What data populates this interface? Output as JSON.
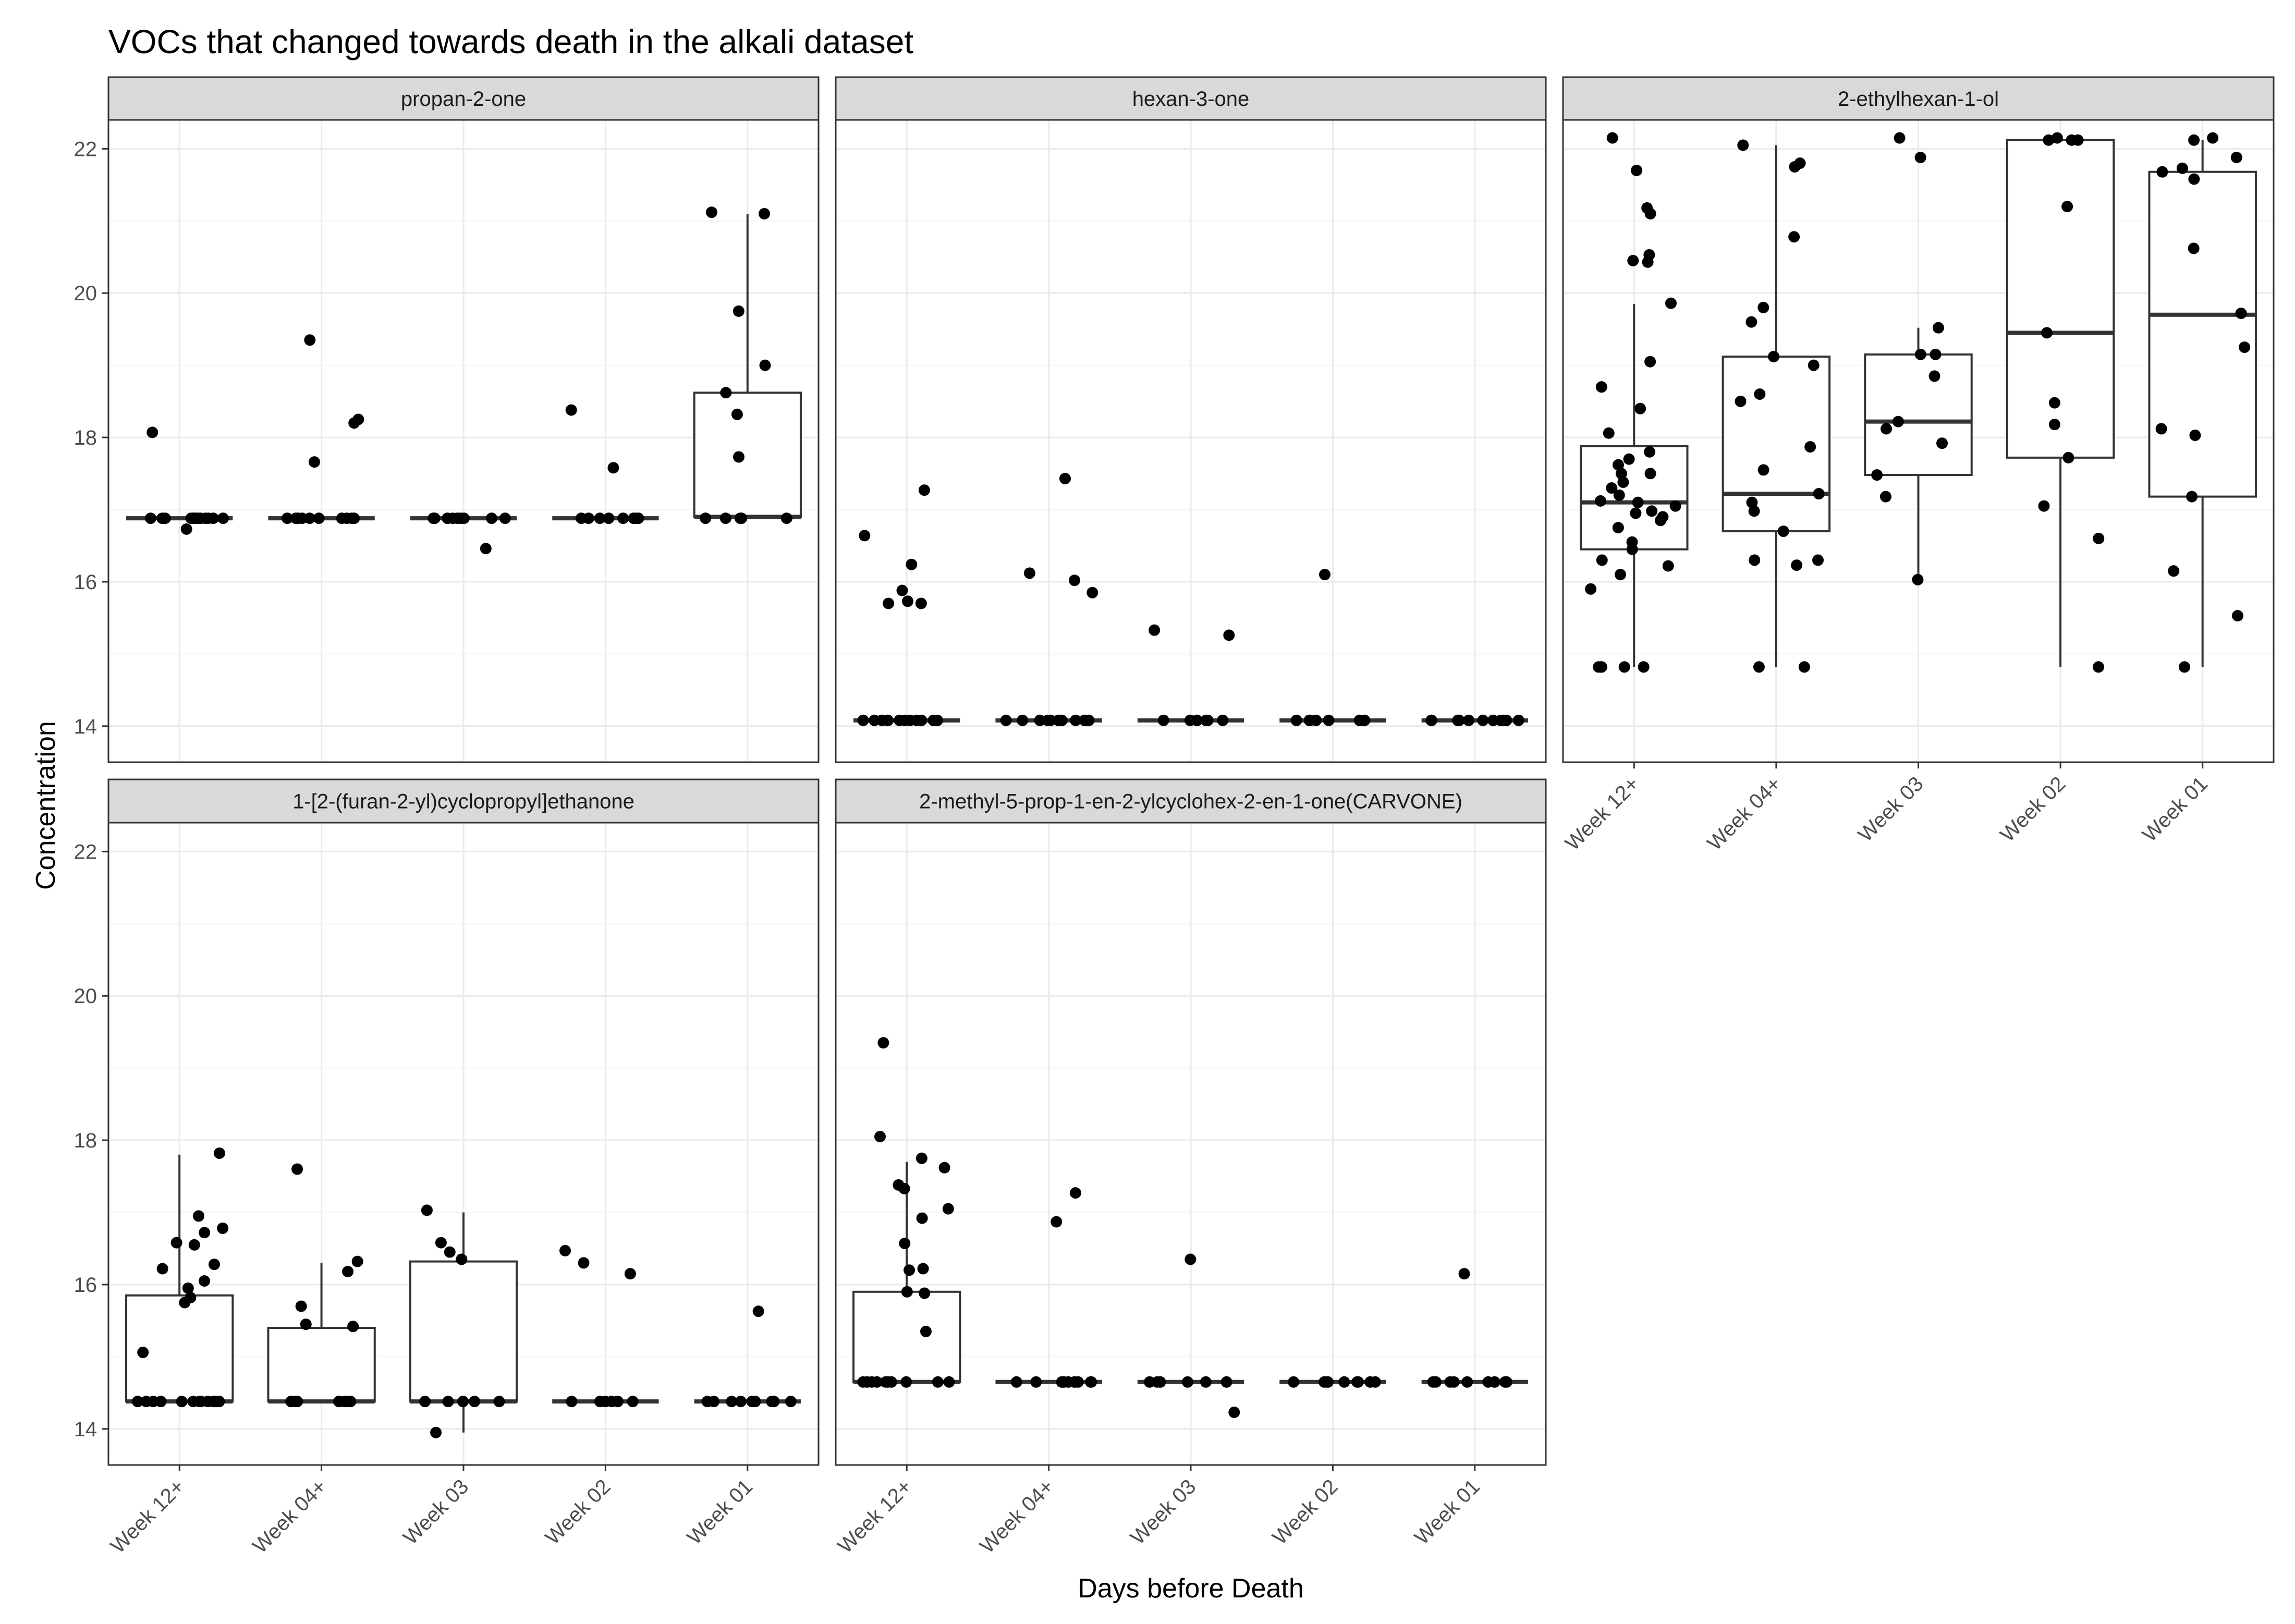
{
  "chart_data": {
    "type": "box",
    "title": "VOCs that changed towards death in the alkali dataset",
    "xlabel": "Days before Death",
    "ylabel": "Concentration",
    "categories": [
      "Week 12+",
      "Week 04+",
      "Week 03",
      "Week 02",
      "Week 01"
    ],
    "ylim": [
      13.5,
      22.4
    ],
    "yticks": [
      14,
      16,
      18,
      20,
      22
    ],
    "facets": [
      {
        "label": "propan-2-one",
        "groups": [
          {
            "category": "Week 12+",
            "q1": 16.88,
            "median": 16.88,
            "q3": 16.88,
            "whisker_low": 16.88,
            "whisker_high": 16.88,
            "points": [
              16.88,
              16.88,
              16.88,
              16.88,
              16.88,
              16.88,
              16.88,
              16.88,
              16.88,
              16.88,
              16.88,
              16.88,
              16.88,
              18.07,
              16.73
            ]
          },
          {
            "category": "Week 04+",
            "q1": 16.88,
            "median": 16.88,
            "q3": 16.88,
            "whisker_low": 16.88,
            "whisker_high": 16.88,
            "points": [
              16.88,
              16.88,
              16.88,
              16.88,
              16.88,
              16.88,
              16.88,
              16.88,
              16.88,
              16.88,
              19.35,
              18.25,
              18.2,
              17.66
            ]
          },
          {
            "category": "Week 03",
            "q1": 16.88,
            "median": 16.88,
            "q3": 16.88,
            "whisker_low": 16.88,
            "whisker_high": 16.88,
            "points": [
              16.88,
              16.88,
              16.88,
              16.88,
              16.88,
              16.88,
              16.88,
              16.88,
              16.88,
              16.46
            ]
          },
          {
            "category": "Week 02",
            "q1": 16.88,
            "median": 16.88,
            "q3": 16.88,
            "whisker_low": 16.88,
            "whisker_high": 16.88,
            "points": [
              16.88,
              16.88,
              16.88,
              16.88,
              16.88,
              16.88,
              16.88,
              16.88,
              18.38,
              17.58
            ]
          },
          {
            "category": "Week 01",
            "q1": 16.9,
            "median": 16.9,
            "q3": 18.62,
            "whisker_low": 16.88,
            "whisker_high": 21.1,
            "points": [
              21.12,
              21.1,
              19.75,
              19.0,
              18.62,
              18.32,
              17.73,
              16.88,
              16.88,
              16.88,
              16.88,
              16.88
            ]
          }
        ]
      },
      {
        "label": "hexan-3-one",
        "groups": [
          {
            "category": "Week 12+",
            "q1": 14.08,
            "median": 14.08,
            "q3": 14.08,
            "whisker_low": 14.08,
            "whisker_high": 14.08,
            "points": [
              14.08,
              14.08,
              14.08,
              14.08,
              14.08,
              14.08,
              14.08,
              14.08,
              14.08,
              14.08,
              14.08,
              14.08,
              17.27,
              16.64,
              16.24,
              15.88,
              15.73,
              15.7,
              15.7
            ]
          },
          {
            "category": "Week 04+",
            "q1": 14.08,
            "median": 14.08,
            "q3": 14.08,
            "whisker_low": 14.08,
            "whisker_high": 14.08,
            "points": [
              14.08,
              14.08,
              14.08,
              14.08,
              14.08,
              14.08,
              14.08,
              14.08,
              14.08,
              14.08,
              14.08,
              17.43,
              16.12,
              16.02,
              15.85
            ]
          },
          {
            "category": "Week 03",
            "q1": 14.08,
            "median": 14.08,
            "q3": 14.08,
            "whisker_low": 14.08,
            "whisker_high": 14.08,
            "points": [
              14.08,
              14.08,
              14.08,
              14.08,
              14.08,
              14.08,
              14.08,
              15.33,
              15.26
            ]
          },
          {
            "category": "Week 02",
            "q1": 14.08,
            "median": 14.08,
            "q3": 14.08,
            "whisker_low": 14.08,
            "whisker_high": 14.08,
            "points": [
              14.08,
              14.08,
              14.08,
              14.08,
              14.08,
              14.08,
              14.08,
              14.08,
              16.1
            ]
          },
          {
            "category": "Week 01",
            "q1": 14.08,
            "median": 14.08,
            "q3": 14.08,
            "whisker_low": 14.08,
            "whisker_high": 14.08,
            "points": [
              14.08,
              14.08,
              14.08,
              14.08,
              14.08,
              14.08,
              14.08,
              14.08,
              14.08,
              14.08,
              14.08
            ]
          }
        ]
      },
      {
        "label": "2-ethylhexan-1-ol",
        "groups": [
          {
            "category": "Week 12+",
            "q1": 16.45,
            "median": 17.1,
            "q3": 17.88,
            "whisker_low": 14.82,
            "whisker_high": 19.85,
            "points": [
              22.15,
              21.7,
              21.18,
              21.1,
              20.53,
              20.45,
              20.43,
              19.86,
              19.05,
              18.7,
              18.4,
              18.06,
              17.8,
              17.7,
              17.62,
              17.5,
              17.5,
              17.38,
              17.3,
              17.2,
              17.12,
              17.1,
              17.05,
              16.98,
              16.95,
              16.9,
              16.85,
              16.75,
              16.55,
              16.45,
              16.3,
              16.22,
              16.1,
              15.9,
              14.82,
              14.82,
              14.82,
              14.82,
              14.82
            ]
          },
          {
            "category": "Week 04+",
            "q1": 16.7,
            "median": 17.22,
            "q3": 19.12,
            "whisker_low": 14.82,
            "whisker_high": 22.05,
            "points": [
              22.05,
              21.8,
              21.75,
              20.78,
              19.8,
              19.6,
              19.12,
              19.0,
              18.6,
              18.5,
              17.87,
              17.55,
              17.22,
              17.1,
              16.98,
              16.7,
              16.3,
              16.3,
              16.23,
              14.82,
              14.82
            ]
          },
          {
            "category": "Week 03",
            "q1": 17.48,
            "median": 18.22,
            "q3": 19.15,
            "whisker_low": 16.03,
            "whisker_high": 19.52,
            "points": [
              22.15,
              21.88,
              19.52,
              19.15,
              19.15,
              18.85,
              18.22,
              18.12,
              17.92,
              17.48,
              17.18,
              16.03
            ]
          },
          {
            "category": "Week 02",
            "q1": 17.72,
            "median": 19.45,
            "q3": 22.12,
            "whisker_low": 14.82,
            "whisker_high": 22.12,
            "points": [
              22.15,
              22.12,
              22.12,
              22.12,
              21.2,
              19.45,
              18.48,
              18.18,
              17.72,
              17.05,
              16.6,
              14.82
            ]
          },
          {
            "category": "Week 01",
            "q1": 17.18,
            "median": 19.7,
            "q3": 21.68,
            "whisker_low": 14.82,
            "whisker_high": 22.12,
            "points": [
              22.15,
              22.12,
              21.88,
              21.73,
              21.68,
              21.58,
              20.62,
              19.72,
              19.25,
              18.12,
              18.03,
              17.18,
              16.15,
              15.53,
              14.82
            ]
          }
        ]
      },
      {
        "label": "1-[2-(furan-2-yl)cyclopropyl]ethanone",
        "groups": [
          {
            "category": "Week 12+",
            "q1": 14.38,
            "median": 14.38,
            "q3": 15.85,
            "whisker_low": 14.38,
            "whisker_high": 17.8,
            "points": [
              17.82,
              16.95,
              16.78,
              16.72,
              16.58,
              16.55,
              16.28,
              16.22,
              16.05,
              15.95,
              15.82,
              15.75,
              15.06,
              14.38,
              14.38,
              14.38,
              14.38,
              14.38,
              14.38,
              14.38,
              14.38,
              14.38,
              14.38,
              14.38,
              14.38
            ]
          },
          {
            "category": "Week 04+",
            "q1": 14.38,
            "median": 14.38,
            "q3": 15.4,
            "whisker_low": 14.38,
            "whisker_high": 16.3,
            "points": [
              17.6,
              16.32,
              16.18,
              15.7,
              15.45,
              15.42,
              14.38,
              14.38,
              14.38,
              14.38,
              14.38,
              14.38,
              14.38,
              14.38,
              14.38
            ]
          },
          {
            "category": "Week 03",
            "q1": 14.38,
            "median": 14.38,
            "q3": 16.32,
            "whisker_low": 13.95,
            "whisker_high": 17.0,
            "points": [
              17.03,
              16.58,
              16.45,
              16.35,
              14.38,
              14.38,
              14.38,
              14.38,
              14.38,
              13.95
            ]
          },
          {
            "category": "Week 02",
            "q1": 14.38,
            "median": 14.38,
            "q3": 14.38,
            "whisker_low": 14.38,
            "whisker_high": 14.38,
            "points": [
              16.47,
              16.3,
              16.15,
              14.38,
              14.38,
              14.38,
              14.38,
              14.38,
              14.38,
              14.38
            ]
          },
          {
            "category": "Week 01",
            "q1": 14.38,
            "median": 14.38,
            "q3": 14.38,
            "whisker_low": 14.38,
            "whisker_high": 14.38,
            "points": [
              15.63,
              14.38,
              14.38,
              14.38,
              14.38,
              14.38,
              14.38,
              14.38,
              14.38,
              14.38,
              14.38
            ]
          }
        ]
      },
      {
        "label": "2-methyl-5-prop-1-en-2-ylcyclohex-2-en-1-one(CARVONE)",
        "groups": [
          {
            "category": "Week 12+",
            "q1": 14.65,
            "median": 14.65,
            "q3": 15.9,
            "whisker_low": 14.65,
            "whisker_high": 17.7,
            "points": [
              19.35,
              18.05,
              17.75,
              17.62,
              17.38,
              17.33,
              17.05,
              16.92,
              16.57,
              16.22,
              16.2,
              15.9,
              15.88,
              15.35,
              14.65,
              14.65,
              14.65,
              14.65,
              14.65,
              14.65,
              14.65,
              14.65,
              14.65,
              14.65
            ]
          },
          {
            "category": "Week 04+",
            "q1": 14.65,
            "median": 14.65,
            "q3": 14.65,
            "whisker_low": 14.65,
            "whisker_high": 14.65,
            "points": [
              17.27,
              16.87,
              14.65,
              14.65,
              14.65,
              14.65,
              14.65,
              14.65,
              14.65,
              14.65,
              14.65,
              14.65,
              14.65
            ]
          },
          {
            "category": "Week 03",
            "q1": 14.65,
            "median": 14.65,
            "q3": 14.65,
            "whisker_low": 14.65,
            "whisker_high": 14.65,
            "points": [
              16.35,
              14.65,
              14.65,
              14.65,
              14.65,
              14.65,
              14.65,
              14.23
            ]
          },
          {
            "category": "Week 02",
            "q1": 14.65,
            "median": 14.65,
            "q3": 14.65,
            "whisker_low": 14.65,
            "whisker_high": 14.65,
            "points": [
              14.65,
              14.65,
              14.65,
              14.65,
              14.65,
              14.65,
              14.65,
              14.65,
              14.65
            ]
          },
          {
            "category": "Week 01",
            "q1": 14.65,
            "median": 14.65,
            "q3": 14.65,
            "whisker_low": 14.65,
            "whisker_high": 14.65,
            "points": [
              16.15,
              14.65,
              14.65,
              14.65,
              14.65,
              14.65,
              14.65,
              14.65,
              14.65,
              14.65
            ]
          }
        ]
      }
    ]
  }
}
